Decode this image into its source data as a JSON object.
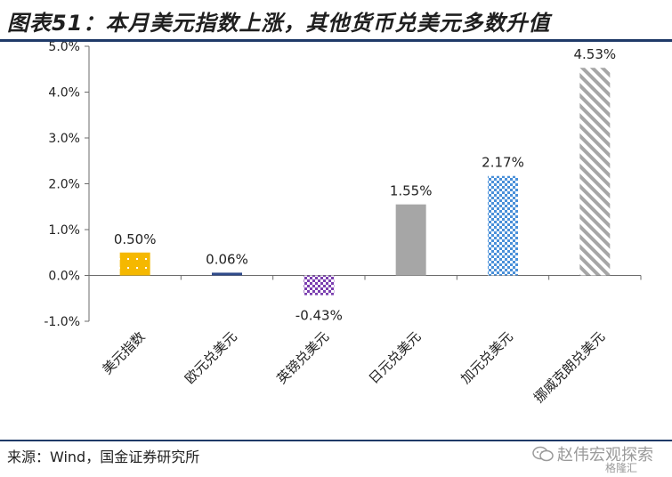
{
  "title": "图表51：本月美元指数上涨，其他货币兑美元多数升值",
  "source": "来源：Wind，国金证券研究所",
  "brand": {
    "name": "赵伟宏观探索",
    "sub": "格隆汇",
    "color": "#9a9a9a"
  },
  "colors": {
    "rule": "#1f3a68",
    "axis": "#6b6b6b"
  },
  "chart_data": {
    "type": "bar",
    "categories": [
      "美元指数",
      "欧元兑美元",
      "英镑兑美元",
      "日元兑美元",
      "加元兑美元",
      "挪威克朗兑美元"
    ],
    "values": [
      0.5,
      0.06,
      -0.43,
      1.55,
      2.17,
      4.53
    ],
    "value_labels": [
      "0.50%",
      "0.06%",
      "-0.43%",
      "1.55%",
      "2.17%",
      "4.53%"
    ],
    "yticks": [
      "5.0%",
      "4.0%",
      "3.0%",
      "2.0%",
      "1.0%",
      "0.0%",
      "-1.0%"
    ],
    "ylim": [
      -1.0,
      5.0
    ],
    "grid": false,
    "xlabel": "",
    "ylabel": "",
    "bar_styles": [
      {
        "fill": "#f5b800",
        "pattern": "dots"
      },
      {
        "fill": "#2f4a8a",
        "pattern": "solid"
      },
      {
        "fill": "#7b3fb0",
        "pattern": "checker"
      },
      {
        "fill": "#a6a6a6",
        "pattern": "solid"
      },
      {
        "fill": "#4a90d9",
        "pattern": "checker"
      },
      {
        "fill": "#a6a6a6",
        "pattern": "diagonal"
      }
    ]
  }
}
